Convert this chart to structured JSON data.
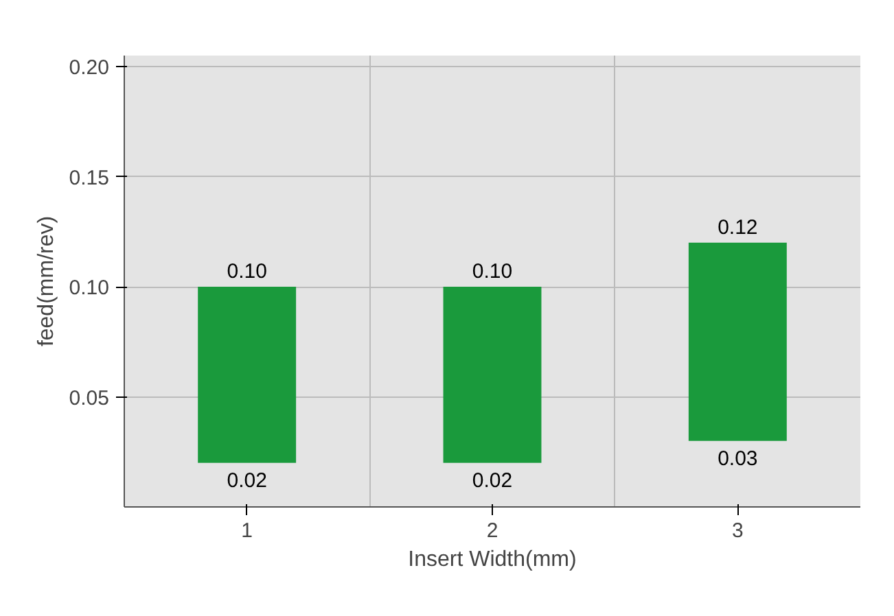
{
  "chart_data": {
    "type": "bar",
    "xlabel": "Insert Width(mm)",
    "ylabel": "feed(mm/rev)",
    "categories": [
      "1",
      "2",
      "3"
    ],
    "base": [
      0.02,
      0.02,
      0.03
    ],
    "values": [
      0.08,
      0.08,
      0.09
    ],
    "color": "#1a9a3c",
    "ylim": [
      0,
      0.205
    ],
    "yticks": [
      {
        "value": 0.05,
        "label": "0.05"
      },
      {
        "value": 0.1,
        "label": "0.10"
      },
      {
        "value": 0.15,
        "label": "0.15"
      },
      {
        "value": 0.2,
        "label": "0.20"
      }
    ],
    "grid": true,
    "annotations": [
      {
        "text": "0.10",
        "x": "1",
        "y": 0.1
      },
      {
        "text": "0.02",
        "x": "1",
        "y": 0.02
      },
      {
        "text": "0.10",
        "x": "2",
        "y": 0.1
      },
      {
        "text": "0.02",
        "x": "2",
        "y": 0.02
      },
      {
        "text": "0.12",
        "x": "3",
        "y": 0.12
      },
      {
        "text": "0.03",
        "x": "3",
        "y": 0.03
      }
    ]
  }
}
